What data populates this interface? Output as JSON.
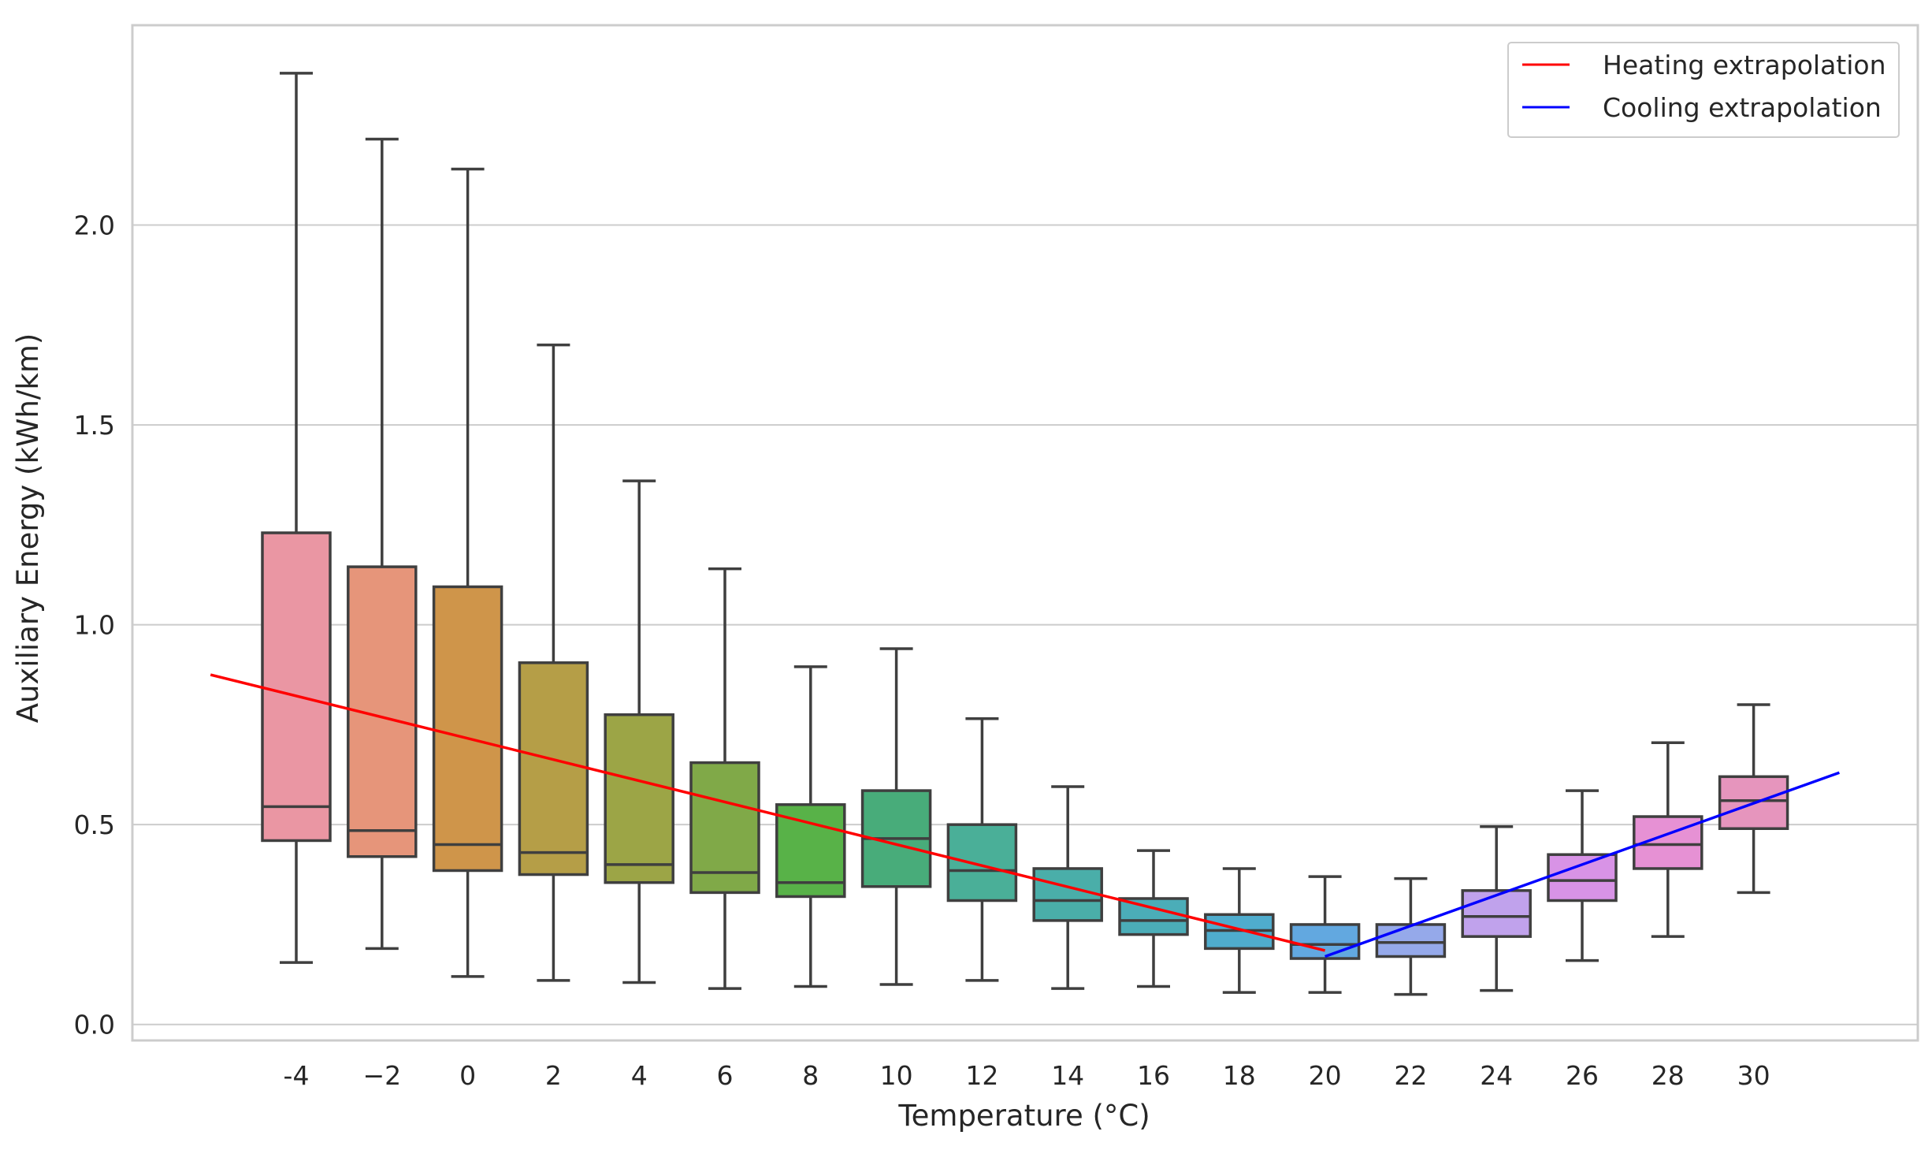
{
  "chart_data": {
    "type": "box",
    "xlabel": "Temperature (°C)",
    "ylabel": "Auxiliary Energy (kWh/km)",
    "ylim": [
      -0.04,
      2.5
    ],
    "yticks": [
      "0.0",
      "0.5",
      "1.0",
      "1.5",
      "2.0"
    ],
    "grid": "horizontal",
    "legend_position": "top-right",
    "categories": [
      "-4",
      "−2",
      "0",
      "2",
      "4",
      "6",
      "8",
      "10",
      "12",
      "14",
      "16",
      "18",
      "20",
      "22",
      "24",
      "26",
      "28",
      "30"
    ],
    "boxes": [
      {
        "x": -4,
        "whisker_low": 0.155,
        "q1": 0.46,
        "median": 0.545,
        "q3": 1.23,
        "whisker_high": 2.38,
        "color": "#ea96a3"
      },
      {
        "x": -2,
        "whisker_low": 0.19,
        "q1": 0.42,
        "median": 0.485,
        "q3": 1.145,
        "whisker_high": 2.215,
        "color": "#e6957a"
      },
      {
        "x": 0,
        "whisker_low": 0.12,
        "q1": 0.385,
        "median": 0.45,
        "q3": 1.095,
        "whisker_high": 2.14,
        "color": "#cf954a"
      },
      {
        "x": 2,
        "whisker_low": 0.11,
        "q1": 0.375,
        "median": 0.43,
        "q3": 0.905,
        "whisker_high": 1.7,
        "color": "#b59e47"
      },
      {
        "x": 4,
        "whisker_low": 0.105,
        "q1": 0.355,
        "median": 0.4,
        "q3": 0.775,
        "whisker_high": 1.36,
        "color": "#9ca546"
      },
      {
        "x": 6,
        "whisker_low": 0.09,
        "q1": 0.33,
        "median": 0.38,
        "q3": 0.655,
        "whisker_high": 1.14,
        "color": "#80a948"
      },
      {
        "x": 8,
        "whisker_low": 0.095,
        "q1": 0.32,
        "median": 0.355,
        "q3": 0.55,
        "whisker_high": 0.895,
        "color": "#58b248"
      },
      {
        "x": 10,
        "whisker_low": 0.1,
        "q1": 0.345,
        "median": 0.465,
        "q3": 0.585,
        "whisker_high": 0.94,
        "color": "#48ac7a"
      },
      {
        "x": 12,
        "whisker_low": 0.11,
        "q1": 0.31,
        "median": 0.385,
        "q3": 0.5,
        "whisker_high": 0.765,
        "color": "#4aaf98"
      },
      {
        "x": 14,
        "whisker_low": 0.09,
        "q1": 0.26,
        "median": 0.31,
        "q3": 0.39,
        "whisker_high": 0.595,
        "color": "#4aaea9"
      },
      {
        "x": 16,
        "whisker_low": 0.095,
        "q1": 0.225,
        "median": 0.26,
        "q3": 0.315,
        "whisker_high": 0.435,
        "color": "#4badb8"
      },
      {
        "x": 18,
        "whisker_low": 0.08,
        "q1": 0.19,
        "median": 0.235,
        "q3": 0.275,
        "whisker_high": 0.39,
        "color": "#4faccd"
      },
      {
        "x": 20,
        "whisker_low": 0.08,
        "q1": 0.165,
        "median": 0.2,
        "q3": 0.25,
        "whisker_high": 0.37,
        "color": "#62a8e0"
      },
      {
        "x": 22,
        "whisker_low": 0.075,
        "q1": 0.17,
        "median": 0.205,
        "q3": 0.25,
        "whisker_high": 0.365,
        "color": "#95a9ea"
      },
      {
        "x": 24,
        "whisker_low": 0.085,
        "q1": 0.22,
        "median": 0.27,
        "q3": 0.335,
        "whisker_high": 0.495,
        "color": "#c0a2ec"
      },
      {
        "x": 26,
        "whisker_low": 0.16,
        "q1": 0.31,
        "median": 0.36,
        "q3": 0.425,
        "whisker_high": 0.585,
        "color": "#d893e6"
      },
      {
        "x": 28,
        "whisker_low": 0.22,
        "q1": 0.39,
        "median": 0.45,
        "q3": 0.52,
        "whisker_high": 0.705,
        "color": "#e691d4"
      },
      {
        "x": 30,
        "whisker_low": 0.33,
        "q1": 0.49,
        "median": 0.56,
        "q3": 0.62,
        "whisker_high": 0.8,
        "color": "#e695bd"
      }
    ],
    "lines": [
      {
        "name": "Heating extrapolation",
        "color": "#ff0000",
        "points": [
          [
            -6,
            0.875
          ],
          [
            20,
            0.185
          ]
        ]
      },
      {
        "name": "Cooling extrapolation",
        "color": "#0000ff",
        "points": [
          [
            20,
            0.17
          ],
          [
            32,
            0.63
          ]
        ]
      }
    ]
  }
}
